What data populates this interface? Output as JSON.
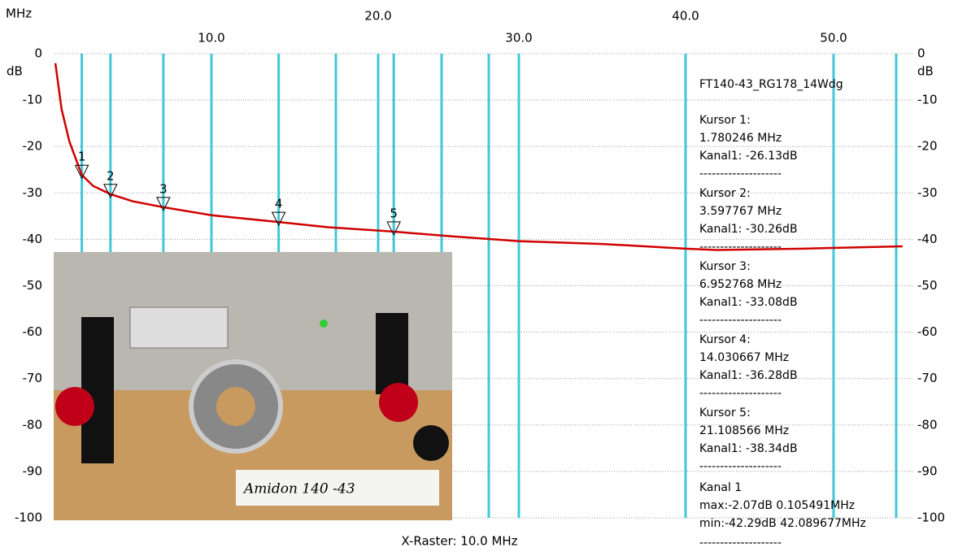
{
  "chart_data": {
    "type": "line",
    "x_unit": "MHz",
    "y_unit": "dB",
    "x_label": "X-Raster: 10.0 MHz",
    "xlim": [
      0.1,
      54
    ],
    "xticks": [
      {
        "value": 10,
        "label": "10.0"
      },
      {
        "value": 20,
        "label": "20.0"
      },
      {
        "value": 30,
        "label": "30.0"
      },
      {
        "value": 40,
        "label": "40.0"
      },
      {
        "value": 50,
        "label": "50.0"
      }
    ],
    "ylim": [
      -100,
      0
    ],
    "yticks": [
      0,
      -10,
      -20,
      -30,
      -40,
      -50,
      -60,
      -70,
      -80,
      -90,
      -100
    ],
    "grid": true,
    "series": [
      {
        "name": "Kanal 1",
        "color": "#d00000",
        "x": [
          0.105491,
          0.5,
          1,
          1.780246,
          2.5,
          3.597767,
          5,
          6.952768,
          10,
          14.030667,
          17,
          21.108566,
          25,
          30,
          35,
          40,
          42.089677,
          48,
          53.5
        ],
        "values": [
          -2.07,
          -12,
          -19,
          -26.13,
          -28.5,
          -30.26,
          -31.8,
          -33.08,
          -34.8,
          -36.28,
          -37.4,
          -38.34,
          -39.3,
          -40.4,
          -41,
          -42,
          -42.29,
          -42,
          -41.5
        ]
      }
    ],
    "cursor_color": "#40c8d8",
    "trace_name": "FT140-43_RG178_14Wdg",
    "cursors": [
      {
        "marker": "1",
        "name": "Kursor 1:",
        "freq": "1.780246 MHz",
        "level": "Kanal1: -26.13dB",
        "x": 1.780246,
        "y": -26.13
      },
      {
        "marker": "2",
        "name": "Kursor 2:",
        "freq": "3.597767 MHz",
        "level": "Kanal1: -30.26dB",
        "x": 3.597767,
        "y": -30.26
      },
      {
        "marker": "3",
        "name": "Kursor 3:",
        "freq": "6.952768 MHz",
        "level": "Kanal1: -33.08dB",
        "x": 6.952768,
        "y": -33.08
      },
      {
        "marker": "4",
        "name": "Kursor 4:",
        "freq": "14.030667 MHz",
        "level": "Kanal1: -36.28dB",
        "x": 14.030667,
        "y": -36.28
      },
      {
        "marker": "5",
        "name": "Kursor 5:",
        "freq": "21.108566 MHz",
        "level": "Kanal1: -38.34dB",
        "x": 21.108566,
        "y": -38.34
      }
    ],
    "separator": "--------------------",
    "summary": {
      "name": "Kanal 1",
      "max": "max:-2.07dB 0.105491MHz",
      "min": "min:-42.29dB 42.089677MHz"
    },
    "photo_caption": "Amidon 140 -43"
  }
}
